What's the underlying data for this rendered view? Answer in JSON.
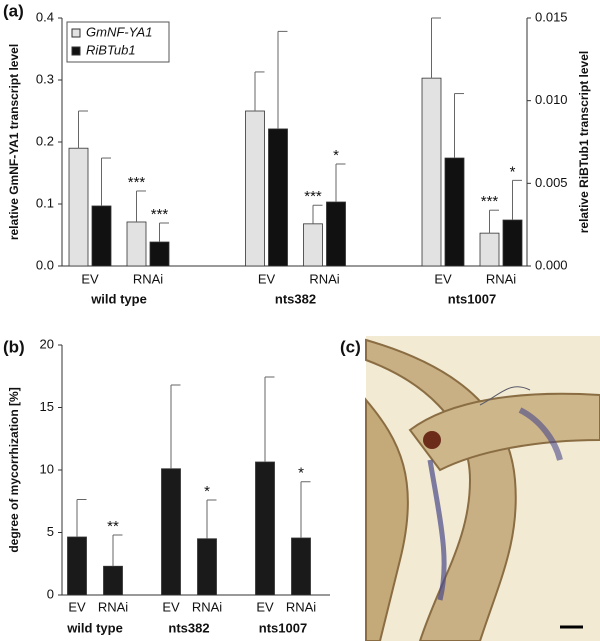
{
  "chart_data": [
    {
      "type": "bar",
      "panel_label": "(a)",
      "ylabel": "relative GmNF-YA1 transcript level",
      "y2label": "relative RiBTub1 transcript level",
      "groups": [
        "wild type",
        "nts382",
        "nts1007"
      ],
      "categories": [
        "EV",
        "RNAi",
        "EV",
        "RNAi",
        "EV",
        "RNAi"
      ],
      "ylim": [
        0,
        0.4
      ],
      "yticks": [
        {
          "value": 0,
          "label": "0.0"
        },
        0.1,
        0.2,
        0.3,
        0.4
      ],
      "y2lim": [
        0,
        0.015
      ],
      "y2ticks": [
        {
          "value": 0,
          "label": "0.000"
        },
        0.005,
        {
          "value": 0.01,
          "label": "0.010"
        },
        0.015
      ],
      "legend": "top-left",
      "series": [
        {
          "name": "GmNF-YA1",
          "color": "#e2e2e2",
          "values": [
            0.19,
            0.071,
            0.25,
            0.068,
            0.303,
            0.053
          ],
          "errors": [
            0.06,
            0.05,
            0.063,
            0.03,
            0.097,
            0.037
          ],
          "significance": [
            null,
            "***",
            null,
            "***",
            null,
            "***"
          ]
        },
        {
          "name": "RiBTub1",
          "color": "#111111",
          "axis": "y2",
          "values": [
            0.00363,
            0.00145,
            0.00829,
            0.00387,
            0.00653,
            0.00278
          ],
          "errors": [
            0.0029,
            0.00115,
            0.0059,
            0.0023,
            0.0039,
            0.0024
          ],
          "significance": [
            null,
            "***",
            null,
            "*",
            null,
            "*"
          ]
        }
      ]
    },
    {
      "type": "bar",
      "panel_label": "(b)",
      "ylabel": "degree of mycorrhization [%]",
      "groups": [
        "wild type",
        "nts382",
        "nts1007"
      ],
      "categories": [
        "EV",
        "RNAi",
        "EV",
        "RNAi",
        "EV",
        "RNAi"
      ],
      "ylim": [
        0,
        20
      ],
      "yticks": [
        0,
        5,
        10,
        15,
        20
      ],
      "series": [
        {
          "color": "#1a1a1a",
          "values": [
            4.64,
            2.3,
            10.1,
            4.5,
            10.64,
            4.56
          ],
          "errors": [
            3.0,
            2.5,
            6.7,
            3.1,
            6.8,
            4.5
          ],
          "significance": [
            null,
            "**",
            null,
            "*",
            null,
            "*"
          ]
        }
      ]
    }
  ],
  "image_panel": {
    "label": "(c)"
  }
}
